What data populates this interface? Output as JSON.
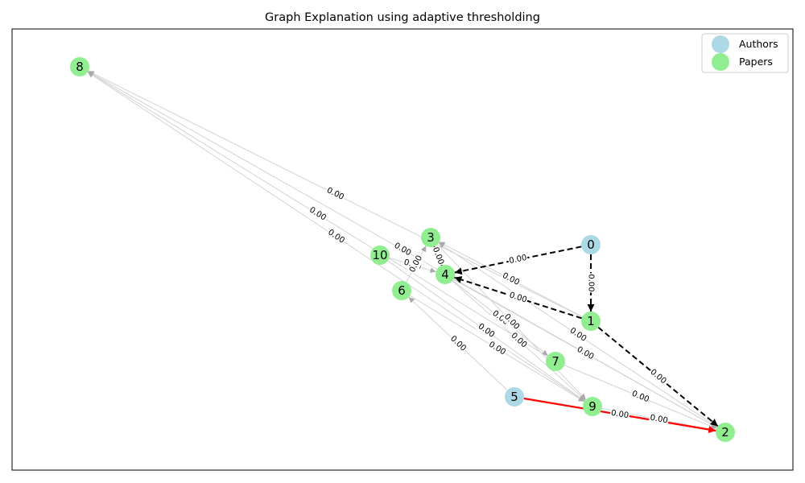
{
  "title": "Graph Explanation using adaptive thresholding",
  "colors": {
    "author": "#add8e6",
    "paper": "#90ee90",
    "edge_faint": "#d3d3d3",
    "edge_black": "#000000",
    "edge_red": "#ff0000",
    "legend_border": "#cccccc"
  },
  "legend": [
    {
      "label": "Authors",
      "type": "author"
    },
    {
      "label": "Papers",
      "type": "paper"
    }
  ],
  "nodes": [
    {
      "id": "0",
      "label": "0",
      "type": "author"
    },
    {
      "id": "1",
      "label": "1",
      "type": "paper"
    },
    {
      "id": "2",
      "label": "2",
      "type": "paper"
    },
    {
      "id": "3",
      "label": "3",
      "type": "paper"
    },
    {
      "id": "4",
      "label": "4",
      "type": "paper"
    },
    {
      "id": "5",
      "label": "5",
      "type": "author"
    },
    {
      "id": "6",
      "label": "6",
      "type": "paper"
    },
    {
      "id": "7",
      "label": "7",
      "type": "paper"
    },
    {
      "id": "8",
      "label": "8",
      "type": "paper"
    },
    {
      "id": "9",
      "label": "9",
      "type": "paper"
    },
    {
      "id": "10",
      "label": "10",
      "type": "paper"
    }
  ],
  "edges": [
    {
      "source": "9",
      "target": "8",
      "weight": "0.00",
      "style": "faint"
    },
    {
      "source": "7",
      "target": "8",
      "weight": "0.00",
      "style": "faint"
    },
    {
      "source": "1",
      "target": "8",
      "weight": "0.00",
      "style": "faint"
    },
    {
      "source": "2",
      "target": "8",
      "weight": "0.00",
      "style": "faint"
    },
    {
      "source": "10",
      "target": "4",
      "weight": "0.00",
      "style": "faint"
    },
    {
      "source": "10",
      "target": "9",
      "weight": "0.00",
      "style": "faint"
    },
    {
      "source": "5",
      "target": "6",
      "weight": "0.00",
      "style": "faint"
    },
    {
      "source": "2",
      "target": "3",
      "weight": "0.00",
      "style": "faint"
    },
    {
      "source": "1",
      "target": "3",
      "weight": "0.00",
      "style": "faint"
    },
    {
      "source": "4",
      "target": "7",
      "weight": "0.00",
      "style": "faint"
    },
    {
      "source": "4",
      "target": "9",
      "weight": "0.00",
      "style": "faint"
    },
    {
      "source": "3",
      "target": "9",
      "weight": "0.00",
      "style": "faint"
    },
    {
      "source": "6",
      "target": "9",
      "weight": "0.00",
      "style": "faint"
    },
    {
      "source": "7",
      "target": "2",
      "weight": "0.00",
      "style": "faint"
    },
    {
      "source": "9",
      "target": "2",
      "weight": "0.00",
      "style": "faint"
    },
    {
      "source": "4",
      "target": "2",
      "weight": "0.00",
      "style": "faint"
    },
    {
      "source": "6",
      "target": "3",
      "weight": "0.00",
      "style": "faint"
    },
    {
      "source": "3",
      "target": "4",
      "weight": "0.00",
      "style": "black"
    },
    {
      "source": "0",
      "target": "4",
      "weight": "0.00",
      "style": "black"
    },
    {
      "source": "1",
      "target": "4",
      "weight": "0.00",
      "style": "black"
    },
    {
      "source": "0",
      "target": "1",
      "weight": "0.00",
      "style": "black"
    },
    {
      "source": "1",
      "target": "2",
      "weight": "0.00",
      "style": "black"
    },
    {
      "source": "5",
      "target": "2",
      "weight": "0.00",
      "style": "red"
    }
  ]
}
